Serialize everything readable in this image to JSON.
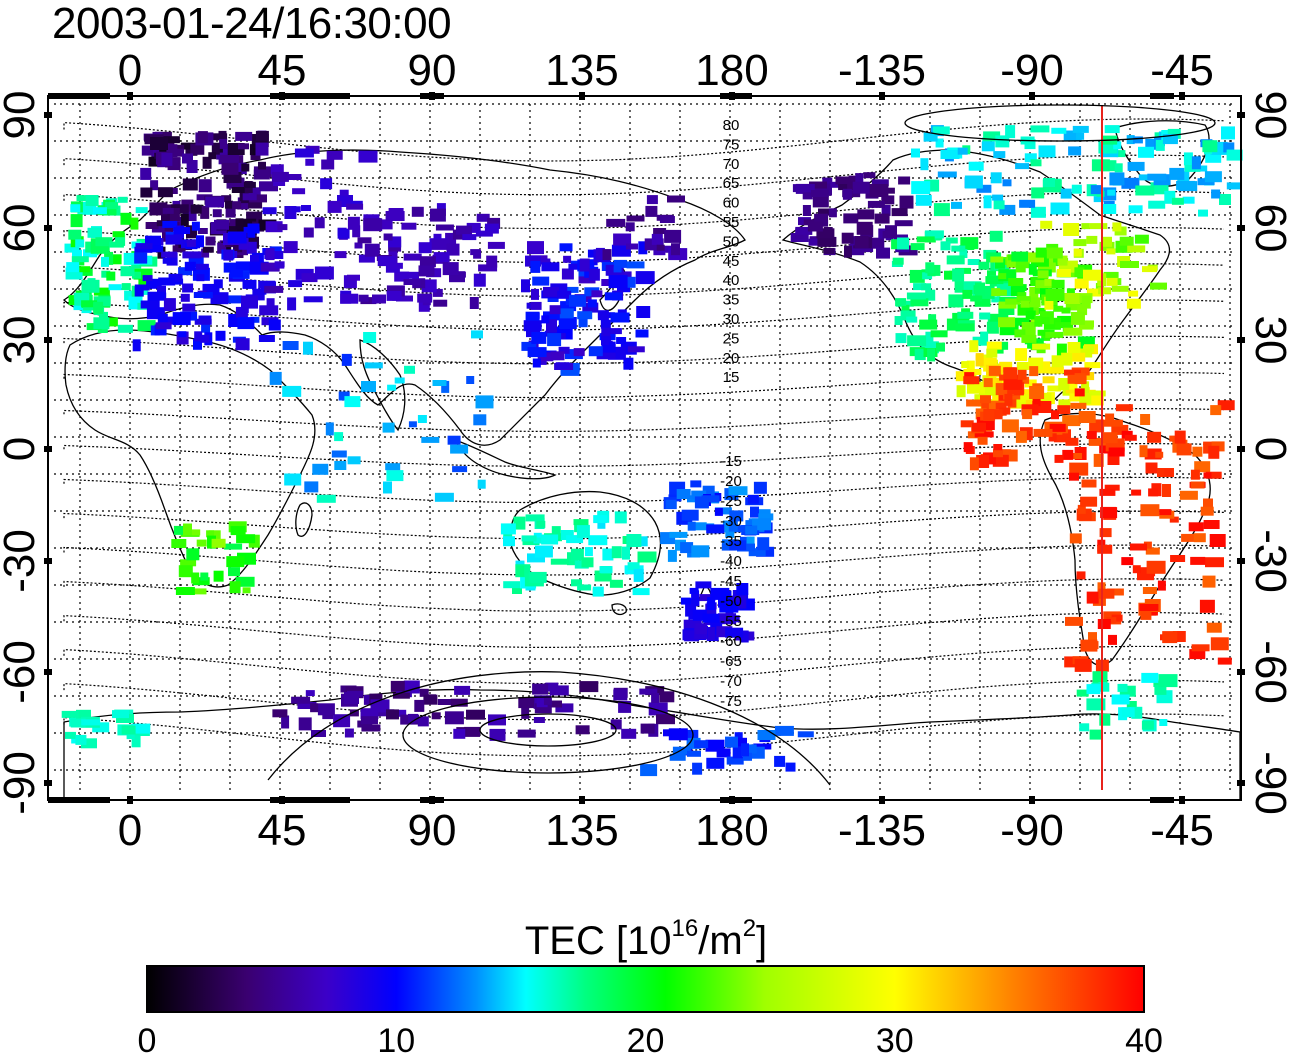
{
  "map": {
    "timestamp": "2003-01-24/16:30:00",
    "top_lon_labels": [
      "0",
      "45",
      "90",
      "135",
      "180",
      "-135",
      "-90",
      "-45"
    ],
    "bottom_lon_labels": [
      "0",
      "45",
      "90",
      "135",
      "180",
      "-135",
      "-90",
      "-45"
    ],
    "left_lat_labels": [
      "90",
      "60",
      "30",
      "0",
      "-30",
      "-60",
      "-90"
    ],
    "right_lat_labels": [
      "90",
      "60",
      "30",
      "0",
      "-30",
      "-60",
      "-90"
    ],
    "mag_lat_labels_north": [
      "80",
      "75",
      "70",
      "65",
      "60",
      "55",
      "50",
      "45",
      "40",
      "35",
      "30",
      "25",
      "20",
      "15"
    ],
    "mag_lat_labels_south": [
      "-15",
      "-20",
      "-25",
      "-30",
      "-35",
      "-40",
      "-45",
      "-50",
      "-55",
      "-60",
      "-65",
      "-70",
      "-75"
    ],
    "terminator_color": "#e8231c",
    "colors": {
      "frame": "#000000",
      "background": "#ffffff"
    }
  },
  "colorbar": {
    "title_prefix": "TEC  [10",
    "title_exp1": "16",
    "title_mid": "/m",
    "title_exp2": "2",
    "title_suffix": "]",
    "ticks": [
      "0",
      "10",
      "20",
      "30",
      "40"
    ],
    "min": 0,
    "max": 40,
    "stops": [
      "#000000",
      "#3a0070",
      "#3c00c8",
      "#0000ff",
      "#0090ff",
      "#00ffff",
      "#00ff80",
      "#00ff00",
      "#a0ff00",
      "#ffff00",
      "#ff8000",
      "#ff0000"
    ]
  }
}
